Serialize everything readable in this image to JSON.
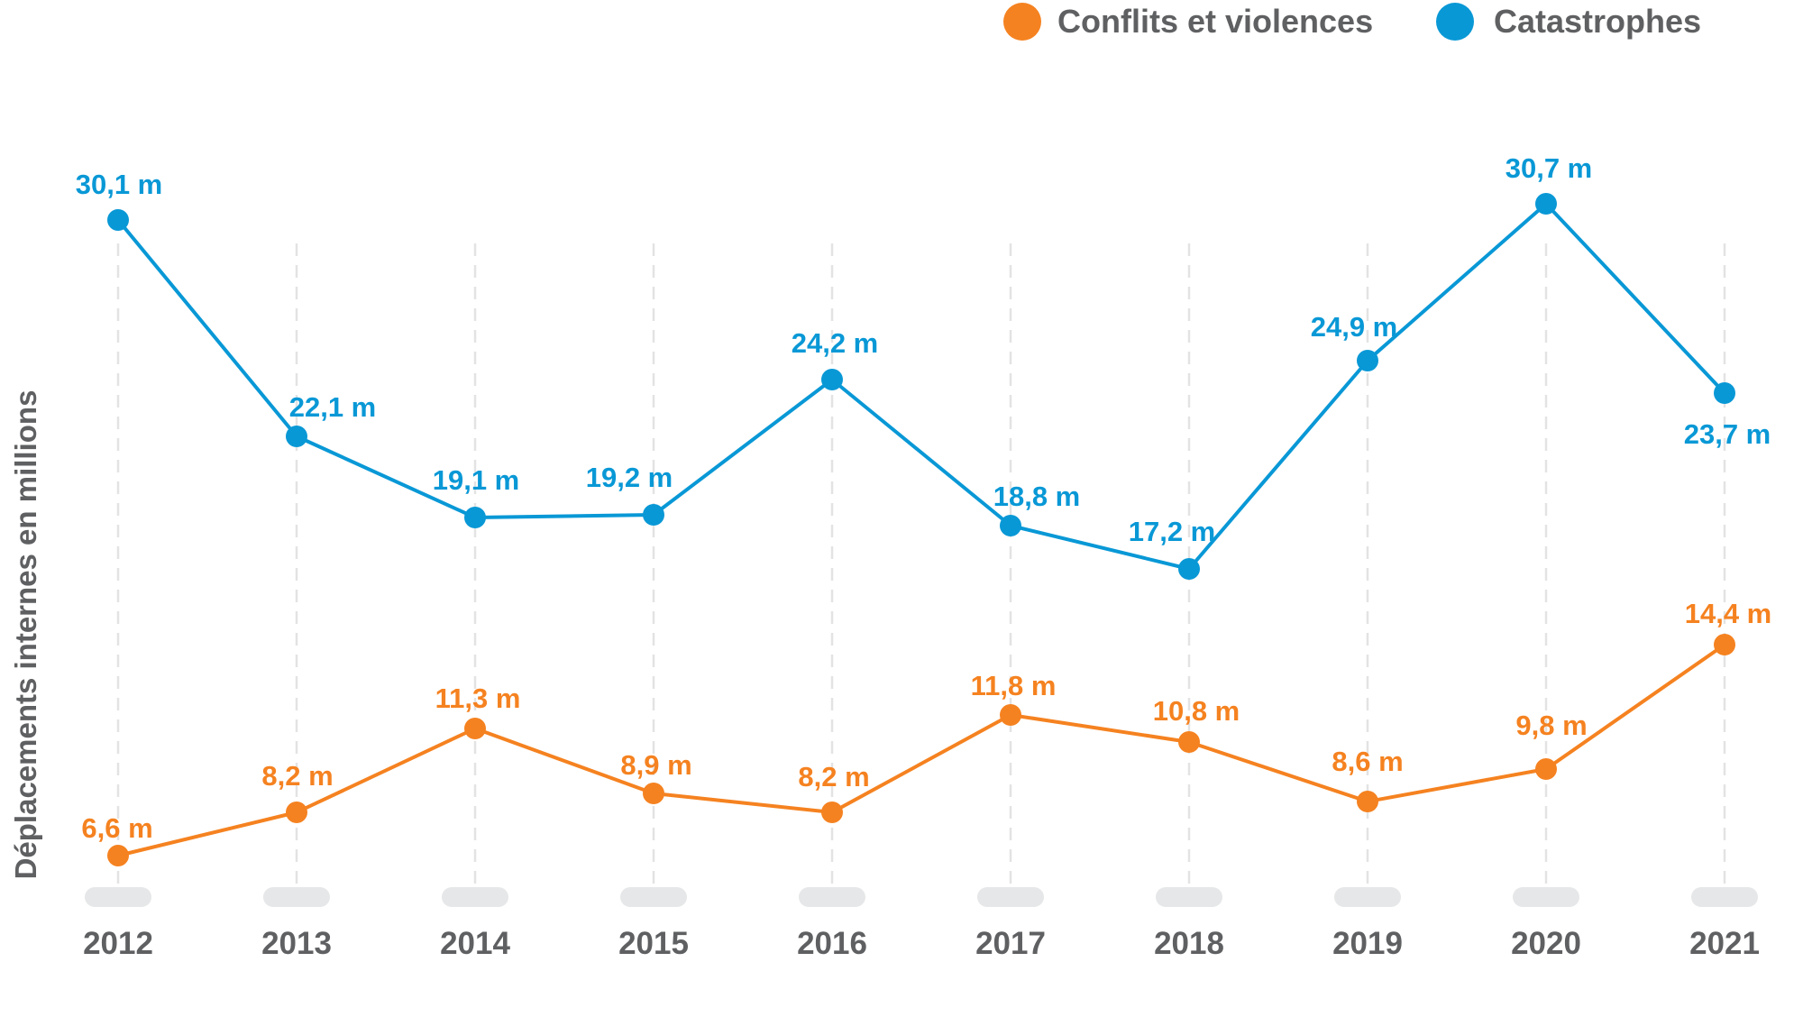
{
  "chart_data": {
    "type": "line",
    "title": "",
    "xlabel": "",
    "ylabel": "Déplacements internes en millions",
    "categories": [
      "2012",
      "2013",
      "2014",
      "2015",
      "2016",
      "2017",
      "2018",
      "2019",
      "2020",
      "2021"
    ],
    "ylim": [
      0,
      32
    ],
    "grid": "vertical dashed",
    "legend_position": "top-right",
    "unit_suffix": " m",
    "series": [
      {
        "name": "Conflits et violences",
        "color": "#f58220",
        "values": [
          6.6,
          8.2,
          11.3,
          8.9,
          8.2,
          11.8,
          10.8,
          8.6,
          9.8,
          14.4
        ],
        "labels": [
          "6,6 m",
          "8,2 m",
          "11,3 m",
          "8,9 m",
          "8,2 m",
          "11,8 m",
          "10,8 m",
          "8,6 m",
          "9,8 m",
          "14,4 m"
        ]
      },
      {
        "name": "Catastrophes",
        "color": "#0998d6",
        "values": [
          30.1,
          22.1,
          19.1,
          19.2,
          24.2,
          18.8,
          17.2,
          24.9,
          30.7,
          23.7
        ],
        "labels": [
          "30,1 m",
          "22,1 m",
          "19,1 m",
          "19,2 m",
          "24,2 m",
          "18,8 m",
          "17,2 m",
          "24,9 m",
          "30,7 m",
          "23,7 m"
        ]
      }
    ]
  },
  "legend": {
    "items": [
      {
        "label": "Conflits et violences",
        "color": "#f58220",
        "icon": "circle-marker"
      },
      {
        "label": "Catastrophes",
        "color": "#0998d6",
        "icon": "circle-marker"
      }
    ]
  },
  "colors": {
    "axis_text": "#5f6062",
    "pill": "#e6e7e8",
    "grid": "#e3e3e3"
  }
}
